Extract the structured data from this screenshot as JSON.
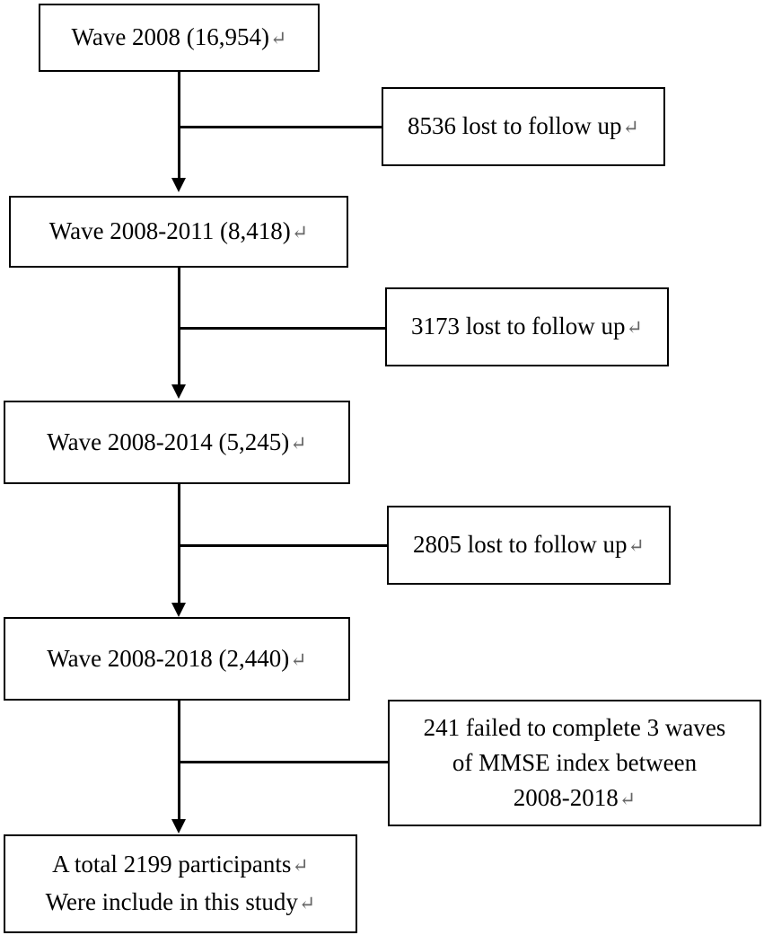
{
  "return_glyph": "↵",
  "boxes": {
    "wave_2008": "Wave 2008 (16,954)",
    "lost_1": "8536 lost to follow up",
    "wave_2011": "Wave 2008-2011 (8,418)",
    "lost_2": "3173 lost to follow up",
    "wave_2014": "Wave 2008-2014 (5,245)",
    "lost_3": "2805 lost to follow up",
    "wave_2018": "Wave 2008-2018 (2,440)",
    "failed": {
      "line1": "241 failed to complete 3 waves",
      "line2": "of MMSE index between",
      "line3": "2008-2018"
    },
    "total": {
      "line1": "A total 2199 participants",
      "line2": "Were include in this study"
    }
  }
}
